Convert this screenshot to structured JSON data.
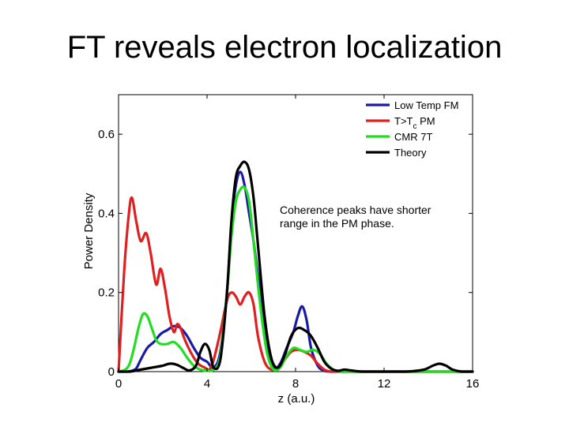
{
  "slide": {
    "title": "FT reveals electron localization"
  },
  "chart_data": {
    "type": "line",
    "xlabel": "z (a.u.)",
    "ylabel": "Power Density",
    "xlim": [
      0,
      16
    ],
    "ylim": [
      0,
      0.7
    ],
    "xticks": [
      0,
      4,
      8,
      12,
      16
    ],
    "yticks": [
      0,
      0.2,
      0.4,
      0.6
    ],
    "xtick_labels": [
      "0",
      "4",
      "8",
      "12",
      "16"
    ],
    "ytick_labels": [
      "0",
      "0.2",
      "0.4",
      "0.6"
    ],
    "grid": false,
    "legend_position": "top-right",
    "annotation": "Coherence peaks have shorter range in the PM phase.",
    "series": [
      {
        "name": "Low Temp FM",
        "color": "#1a1aa8",
        "x": [
          0,
          0.4,
          0.6,
          0.8,
          1.0,
          1.3,
          1.6,
          1.9,
          2.2,
          2.5,
          2.8,
          3.1,
          3.4,
          3.7,
          4.0,
          4.3,
          4.6,
          4.9,
          5.1,
          5.3,
          5.5,
          5.7,
          5.9,
          6.1,
          6.4,
          6.7,
          7.0,
          7.3,
          7.6,
          7.9,
          8.1,
          8.3,
          8.5,
          8.7,
          9.0,
          9.3,
          9.6,
          10.0,
          11.0,
          12.0,
          13.0,
          14.0,
          15.0,
          16.0
        ],
        "y": [
          0.0,
          0.0,
          0.002,
          0.008,
          0.03,
          0.06,
          0.075,
          0.095,
          0.105,
          0.115,
          0.11,
          0.09,
          0.06,
          0.035,
          0.025,
          0.01,
          0.05,
          0.2,
          0.37,
          0.47,
          0.505,
          0.47,
          0.4,
          0.33,
          0.2,
          0.07,
          0.01,
          0.02,
          0.06,
          0.1,
          0.14,
          0.165,
          0.13,
          0.06,
          0.015,
          0.002,
          0.0,
          0.0,
          0.0,
          0.0,
          0.0,
          0.0,
          0.0,
          0.0
        ]
      },
      {
        "name": "T>Tc PM",
        "color": "#e02020",
        "x": [
          0,
          0.25,
          0.45,
          0.6,
          0.8,
          1.0,
          1.25,
          1.45,
          1.7,
          1.9,
          2.1,
          2.3,
          2.5,
          2.65,
          2.8,
          3.0,
          3.3,
          3.6,
          3.9,
          4.1,
          4.3,
          4.6,
          4.9,
          5.1,
          5.3,
          5.5,
          5.7,
          5.9,
          6.1,
          6.3,
          6.6,
          6.9,
          7.2,
          7.5,
          7.8,
          8.1,
          8.4,
          8.7,
          9.0,
          9.3,
          9.6,
          10.0,
          11.0,
          12.0,
          13.0,
          14.0,
          15.0,
          16.0
        ],
        "y": [
          0.0,
          0.25,
          0.39,
          0.44,
          0.38,
          0.33,
          0.35,
          0.3,
          0.22,
          0.26,
          0.21,
          0.14,
          0.1,
          0.12,
          0.11,
          0.08,
          0.045,
          0.02,
          0.01,
          0.005,
          0.03,
          0.1,
          0.18,
          0.2,
          0.19,
          0.17,
          0.19,
          0.2,
          0.17,
          0.09,
          0.025,
          0.005,
          0.01,
          0.03,
          0.05,
          0.055,
          0.05,
          0.04,
          0.02,
          0.005,
          0.0,
          0.0,
          0.0,
          0.0,
          0.0,
          0.0,
          0.0,
          0.0
        ]
      },
      {
        "name": "CMR 7T",
        "color": "#22dd22",
        "x": [
          0,
          0.3,
          0.5,
          0.7,
          0.9,
          1.1,
          1.3,
          1.5,
          1.7,
          1.9,
          2.2,
          2.5,
          2.8,
          3.1,
          3.4,
          3.7,
          4.0,
          4.3,
          4.6,
          4.9,
          5.1,
          5.3,
          5.5,
          5.7,
          5.9,
          6.1,
          6.4,
          6.7,
          7.0,
          7.3,
          7.6,
          7.9,
          8.2,
          8.5,
          8.8,
          9.1,
          9.4,
          9.7,
          10.0,
          11.0,
          12.0,
          13.0,
          14.0,
          15.0,
          16.0
        ],
        "y": [
          0.0,
          0.005,
          0.02,
          0.06,
          0.11,
          0.145,
          0.14,
          0.11,
          0.08,
          0.07,
          0.07,
          0.075,
          0.06,
          0.035,
          0.015,
          0.005,
          0.002,
          0.005,
          0.04,
          0.2,
          0.34,
          0.43,
          0.46,
          0.465,
          0.43,
          0.33,
          0.17,
          0.05,
          0.005,
          0.01,
          0.04,
          0.06,
          0.055,
          0.05,
          0.055,
          0.045,
          0.02,
          0.005,
          0.0,
          0.0,
          0.0,
          0.0,
          0.0,
          0.0,
          0.0
        ]
      },
      {
        "name": "Theory",
        "color": "#000000",
        "x": [
          0,
          0.5,
          1.0,
          1.5,
          2.0,
          2.3,
          2.6,
          2.9,
          3.2,
          3.5,
          3.7,
          3.9,
          4.1,
          4.3,
          4.6,
          4.9,
          5.1,
          5.3,
          5.5,
          5.7,
          5.9,
          6.1,
          6.3,
          6.6,
          6.9,
          7.2,
          7.5,
          7.8,
          8.1,
          8.4,
          8.7,
          9.0,
          9.3,
          9.6,
          9.9,
          10.2,
          10.5,
          11.0,
          12.0,
          13.0,
          13.8,
          14.2,
          14.5,
          14.8,
          15.1,
          15.5,
          16.0
        ],
        "y": [
          0.0,
          0.0,
          0.005,
          0.01,
          0.015,
          0.02,
          0.018,
          0.01,
          0.003,
          0.015,
          0.05,
          0.07,
          0.055,
          0.01,
          0.03,
          0.2,
          0.38,
          0.49,
          0.52,
          0.53,
          0.51,
          0.44,
          0.32,
          0.14,
          0.035,
          0.01,
          0.04,
          0.09,
          0.11,
          0.105,
          0.09,
          0.06,
          0.025,
          0.008,
          0.002,
          0.005,
          0.003,
          0.0,
          0.0,
          0.0,
          0.005,
          0.015,
          0.02,
          0.015,
          0.005,
          0.0,
          0.0
        ]
      }
    ]
  }
}
